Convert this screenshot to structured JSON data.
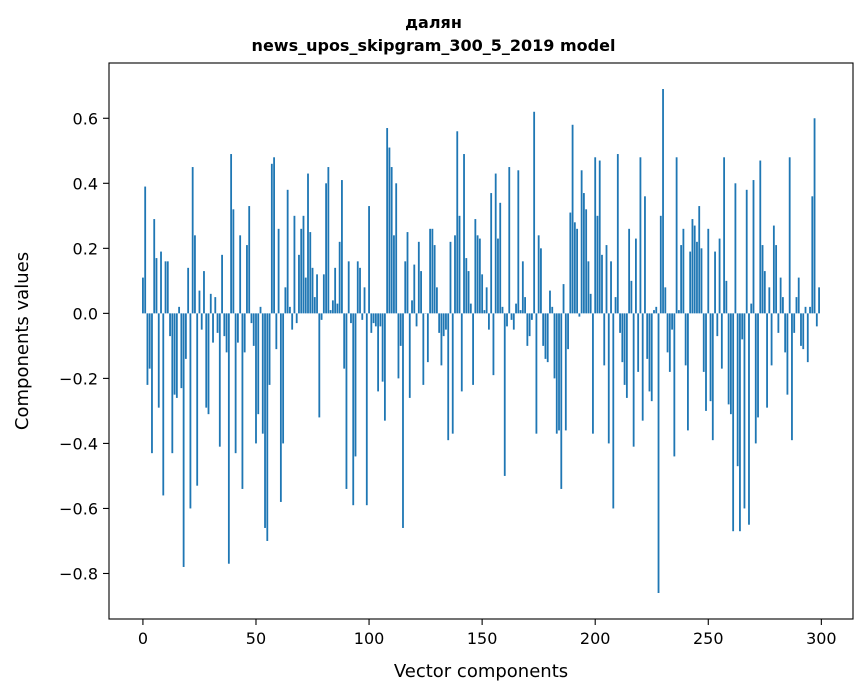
{
  "chart_data": {
    "type": "bar",
    "title": "далян\nnews_upos_skipgram_300_5_2019 model",
    "title_lines": [
      "далян",
      "news_upos_skipgram_300_5_2019 model"
    ],
    "xlabel": "Vector components",
    "ylabel": "Components values",
    "xlim": [
      -15,
      314
    ],
    "ylim": [
      -0.94,
      0.77
    ],
    "xticks": [
      0,
      50,
      100,
      150,
      200,
      250,
      300
    ],
    "yticks": [
      -0.8,
      -0.6,
      -0.4,
      -0.2,
      0.0,
      0.2,
      0.4,
      0.6
    ],
    "ytick_labels": [
      "−0.8",
      "−0.6",
      "−0.4",
      "−0.2",
      "0.0",
      "0.2",
      "0.4",
      "0.6"
    ],
    "grid": false,
    "bar_color": "#1f77b4",
    "values": [
      0.11,
      0.39,
      -0.22,
      -0.17,
      -0.43,
      0.29,
      0.17,
      -0.29,
      0.19,
      -0.56,
      0.16,
      0.16,
      -0.07,
      -0.43,
      -0.25,
      -0.26,
      0.02,
      -0.23,
      -0.78,
      -0.14,
      0.14,
      -0.6,
      0.45,
      0.24,
      -0.53,
      0.07,
      -0.05,
      0.13,
      -0.29,
      -0.31,
      0.06,
      -0.09,
      0.05,
      -0.06,
      -0.41,
      0.18,
      -0.07,
      -0.12,
      -0.77,
      0.49,
      0.32,
      -0.43,
      -0.09,
      0.24,
      -0.54,
      -0.12,
      0.21,
      0.33,
      -0.03,
      -0.1,
      -0.4,
      -0.31,
      0.02,
      -0.37,
      -0.66,
      -0.7,
      -0.22,
      0.46,
      0.48,
      -0.11,
      0.26,
      -0.58,
      -0.4,
      0.08,
      0.38,
      0.02,
      -0.05,
      0.3,
      -0.03,
      0.18,
      0.26,
      0.3,
      0.11,
      0.43,
      0.25,
      0.14,
      0.05,
      0.12,
      -0.32,
      -0.02,
      0.12,
      0.4,
      0.45,
      0.01,
      0.04,
      0.14,
      0.03,
      0.22,
      0.41,
      -0.17,
      -0.54,
      0.16,
      -0.03,
      -0.59,
      -0.44,
      0.16,
      0.14,
      -0.02,
      0.08,
      -0.59,
      0.33,
      -0.06,
      -0.03,
      -0.04,
      -0.24,
      -0.04,
      -0.21,
      -0.33,
      0.57,
      0.51,
      0.45,
      0.24,
      0.4,
      -0.2,
      -0.1,
      -0.66,
      0.16,
      0.25,
      -0.26,
      0.04,
      0.15,
      -0.04,
      0.22,
      0.13,
      -0.22,
      0.0,
      -0.15,
      0.26,
      0.26,
      0.21,
      0.08,
      -0.06,
      -0.16,
      -0.07,
      -0.05,
      -0.39,
      0.22,
      -0.37,
      0.24,
      0.56,
      0.3,
      -0.24,
      0.49,
      0.17,
      0.13,
      0.03,
      -0.22,
      0.29,
      0.24,
      0.23,
      0.12,
      0.01,
      0.08,
      -0.05,
      0.37,
      -0.19,
      0.43,
      0.23,
      0.34,
      0.02,
      -0.5,
      -0.04,
      0.45,
      -0.02,
      -0.05,
      0.03,
      0.44,
      0.01,
      0.16,
      0.05,
      -0.1,
      -0.07,
      -0.02,
      0.62,
      -0.37,
      0.24,
      0.2,
      -0.1,
      -0.14,
      -0.15,
      0.07,
      0.02,
      -0.2,
      -0.37,
      -0.36,
      -0.54,
      0.09,
      -0.36,
      -0.11,
      0.31,
      0.58,
      0.28,
      0.26,
      -0.01,
      0.44,
      0.37,
      0.32,
      0.16,
      0.06,
      -0.37,
      0.48,
      0.3,
      0.47,
      0.18,
      -0.16,
      0.21,
      -0.4,
      0.16,
      -0.6,
      0.05,
      0.49,
      -0.06,
      -0.15,
      -0.22,
      -0.26,
      0.26,
      0.1,
      -0.41,
      0.23,
      -0.18,
      0.48,
      -0.33,
      0.36,
      -0.14,
      -0.24,
      -0.27,
      0.01,
      0.02,
      -0.86,
      0.3,
      0.69,
      0.08,
      -0.12,
      -0.18,
      -0.05,
      -0.44,
      0.48,
      0.01,
      0.21,
      0.26,
      -0.16,
      -0.36,
      0.19,
      0.29,
      0.27,
      0.22,
      0.33,
      0.2,
      -0.18,
      -0.3,
      0.26,
      -0.27,
      -0.39,
      0.19,
      -0.07,
      0.23,
      -0.17,
      0.48,
      0.1,
      -0.28,
      -0.31,
      -0.67,
      0.4,
      -0.47,
      -0.67,
      -0.08,
      -0.6,
      0.38,
      -0.65,
      0.03,
      0.41,
      -0.4,
      -0.32,
      0.47,
      0.21,
      0.13,
      -0.29,
      0.08,
      -0.16,
      0.27,
      0.21,
      -0.06,
      0.11,
      0.05,
      -0.12,
      -0.25,
      0.48,
      -0.39,
      -0.06,
      0.05,
      0.11,
      -0.1,
      -0.11,
      0.02,
      -0.15,
      0.02,
      0.36,
      0.6,
      -0.04,
      0.08
    ]
  }
}
